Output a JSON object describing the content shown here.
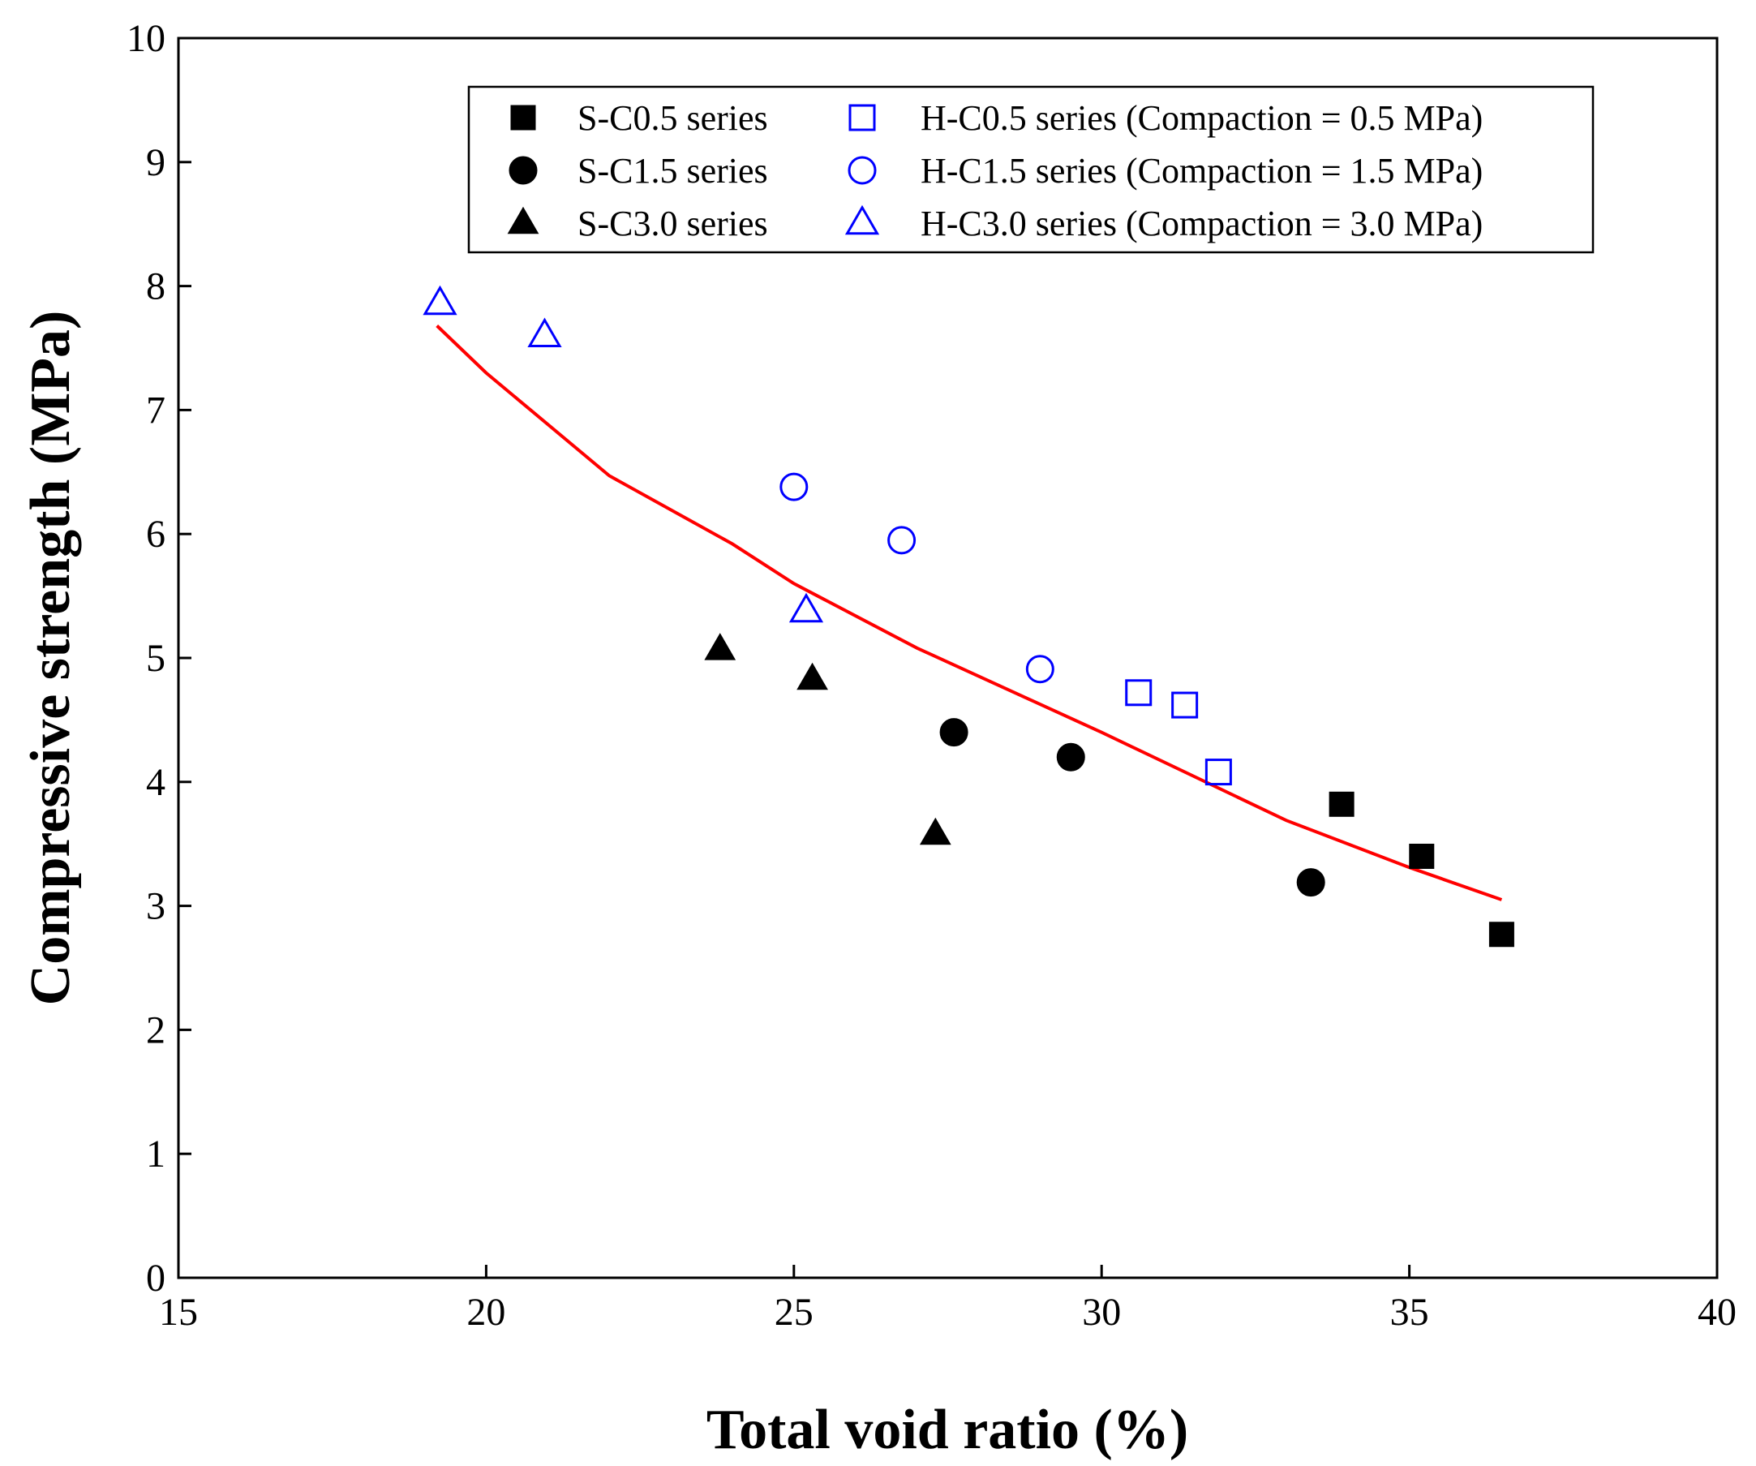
{
  "chart_data": {
    "type": "scatter",
    "title": "",
    "xlabel": "Total void ratio (%)",
    "ylabel": "Compressive strength (MPa)",
    "xlim": [
      15,
      40
    ],
    "ylim": [
      0,
      10
    ],
    "xticks": [
      15,
      20,
      25,
      30,
      35,
      40
    ],
    "yticks": [
      0,
      1,
      2,
      3,
      4,
      5,
      6,
      7,
      8,
      9,
      10
    ],
    "grid": false,
    "legend_position": "top-right",
    "series": [
      {
        "name": "S-C0.5 series",
        "marker": "square",
        "filled": true,
        "color": "#000000",
        "points": [
          [
            33.9,
            3.82
          ],
          [
            35.2,
            3.4
          ],
          [
            36.5,
            2.77
          ]
        ]
      },
      {
        "name": "S-C1.5 series",
        "marker": "circle",
        "filled": true,
        "color": "#000000",
        "points": [
          [
            27.6,
            4.4
          ],
          [
            29.5,
            4.2
          ],
          [
            33.4,
            3.19
          ]
        ]
      },
      {
        "name": "S-C3.0 series",
        "marker": "triangle",
        "filled": true,
        "color": "#000000",
        "points": [
          [
            23.8,
            5.07
          ],
          [
            25.3,
            4.83
          ],
          [
            27.3,
            3.58
          ]
        ]
      },
      {
        "name": "H-C0.5 series (Compaction = 0.5 MPa)",
        "marker": "square",
        "filled": false,
        "color": "#0000ff",
        "points": [
          [
            30.6,
            4.72
          ],
          [
            31.35,
            4.62
          ],
          [
            31.9,
            4.08
          ]
        ]
      },
      {
        "name": "H-C1.5 series (Compaction = 1.5 MPa)",
        "marker": "circle",
        "filled": false,
        "color": "#0000ff",
        "points": [
          [
            25.0,
            6.38
          ],
          [
            26.75,
            5.95
          ],
          [
            29.0,
            4.91
          ]
        ]
      },
      {
        "name": "H-C3.0 series (Compaction = 3.0 MPa)",
        "marker": "triangle",
        "filled": false,
        "color": "#0000ff",
        "points": [
          [
            19.25,
            7.86
          ],
          [
            20.95,
            7.6
          ],
          [
            25.2,
            5.38
          ]
        ]
      }
    ],
    "fit_line": {
      "color": "#ff0000",
      "points": [
        [
          19.2,
          7.68
        ],
        [
          20.0,
          7.3
        ],
        [
          22.0,
          6.47
        ],
        [
          24.0,
          5.92
        ],
        [
          25.0,
          5.6
        ],
        [
          27.0,
          5.08
        ],
        [
          30.0,
          4.4
        ],
        [
          33.0,
          3.69
        ],
        [
          35.0,
          3.31
        ],
        [
          36.5,
          3.05
        ]
      ]
    }
  }
}
